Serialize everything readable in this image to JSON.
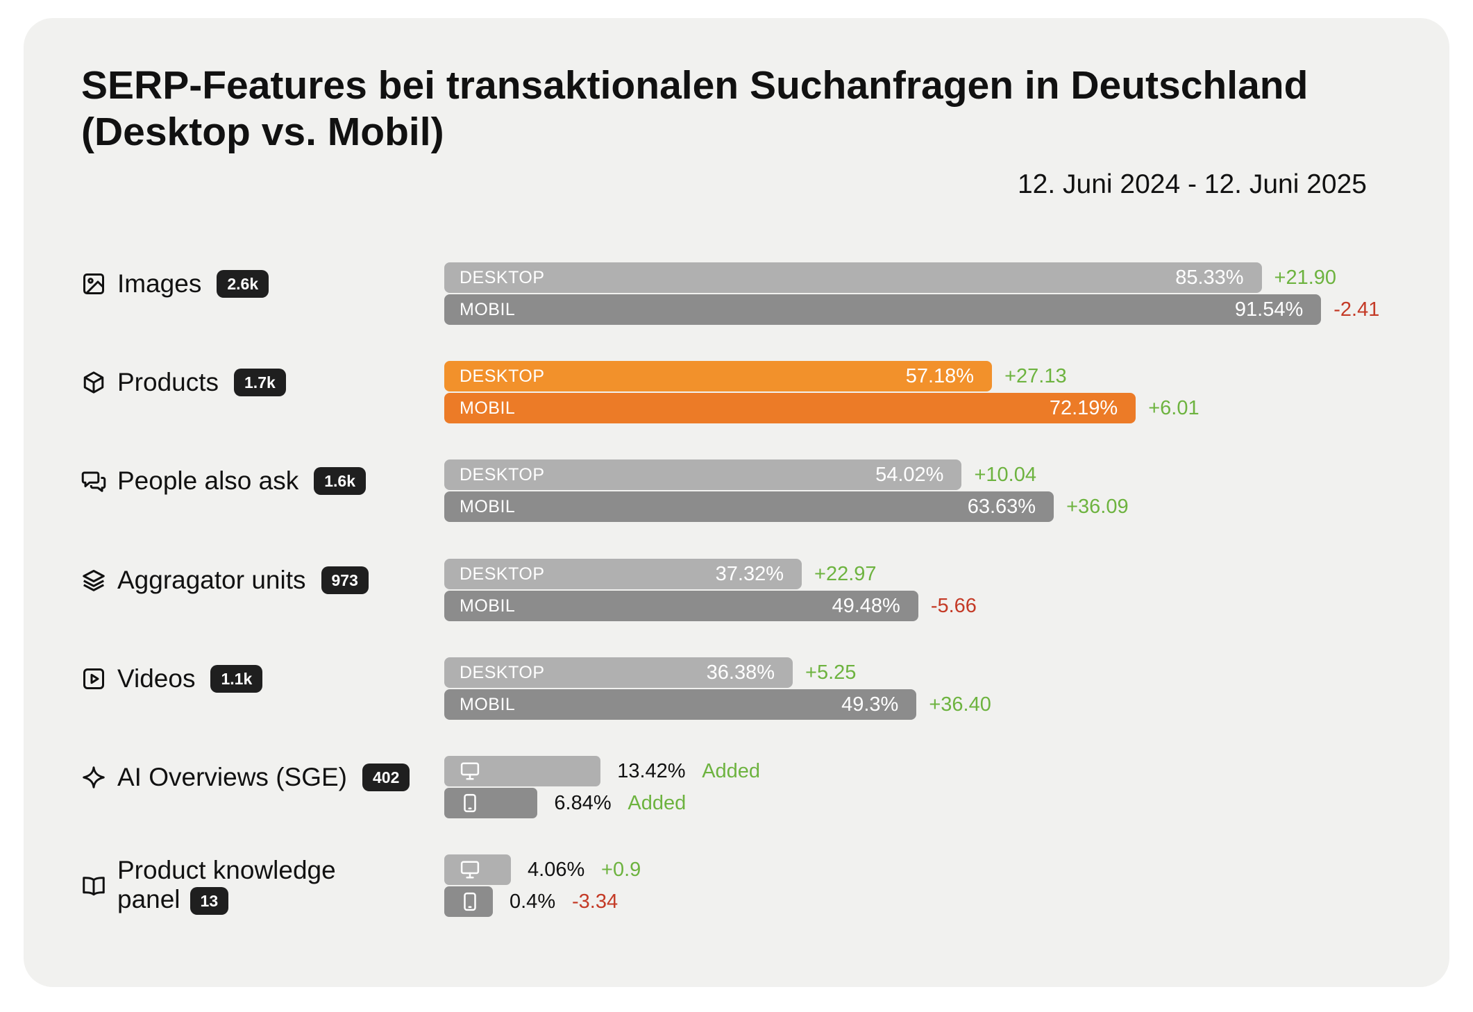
{
  "colors": {
    "desktop_gray": "#b0b0b0",
    "mobile_gray": "#8c8c8c",
    "desktop_highlight": "#f2912b",
    "mobile_highlight": "#ec7b27",
    "positive": "#6db33f",
    "negative": "#c43a26",
    "card_bg": "#f1f1ef"
  },
  "chart_data": {
    "type": "bar",
    "orientation": "horizontal",
    "title_lines": [
      "SERP-Features bei transaktionalen Suchanfragen in Deutschland",
      "(Desktop vs. Mobil)"
    ],
    "date_range": "12. Juni 2024 - 12. Juni 2025",
    "series_labels": {
      "desktop": "DESKTOP",
      "mobile": "MOBIL"
    },
    "unit": "%",
    "xlim": [
      0,
      100
    ],
    "highlighted_category": "Products",
    "categories": [
      {
        "name": "Images",
        "icon": "image-icon",
        "count": "2.6k",
        "desktop": {
          "value": 85.33,
          "label": "85.33%",
          "delta": "+21.90"
        },
        "mobile": {
          "value": 91.54,
          "label": "91.54%",
          "delta": "-2.41"
        }
      },
      {
        "name": "Products",
        "icon": "cube-icon",
        "count": "1.7k",
        "desktop": {
          "value": 57.18,
          "label": "57.18%",
          "delta": "+27.13"
        },
        "mobile": {
          "value": 72.19,
          "label": "72.19%",
          "delta": "+6.01"
        }
      },
      {
        "name": "People also ask",
        "icon": "chat-bubbles-icon",
        "count": "1.6k",
        "desktop": {
          "value": 54.02,
          "label": "54.02%",
          "delta": "+10.04"
        },
        "mobile": {
          "value": 63.63,
          "label": "63.63%",
          "delta": "+36.09"
        }
      },
      {
        "name": "Aggragator units",
        "icon": "layers-icon",
        "count": "973",
        "desktop": {
          "value": 37.32,
          "label": "37.32%",
          "delta": "+22.97"
        },
        "mobile": {
          "value": 49.48,
          "label": "49.48%",
          "delta": "-5.66"
        }
      },
      {
        "name": "Videos",
        "icon": "play-video-icon",
        "count": "1.1k",
        "desktop": {
          "value": 36.38,
          "label": "36.38%",
          "delta": "+5.25"
        },
        "mobile": {
          "value": 49.3,
          "label": "49.3%",
          "delta": "+36.40"
        }
      },
      {
        "name": "AI Overviews (SGE)",
        "icon": "sparkle-icon",
        "count": "402",
        "desktop": {
          "value": 13.42,
          "label": "13.42%",
          "delta": "Added"
        },
        "mobile": {
          "value": 6.84,
          "label": "6.84%",
          "delta": "Added"
        }
      },
      {
        "name": "Product knowledge panel",
        "icon": "open-book-icon",
        "count": "13",
        "desktop": {
          "value": 4.06,
          "label": "4.06%",
          "delta": "+0.9"
        },
        "mobile": {
          "value": 0.4,
          "label": "0.4%",
          "delta": "-3.34"
        }
      }
    ]
  }
}
